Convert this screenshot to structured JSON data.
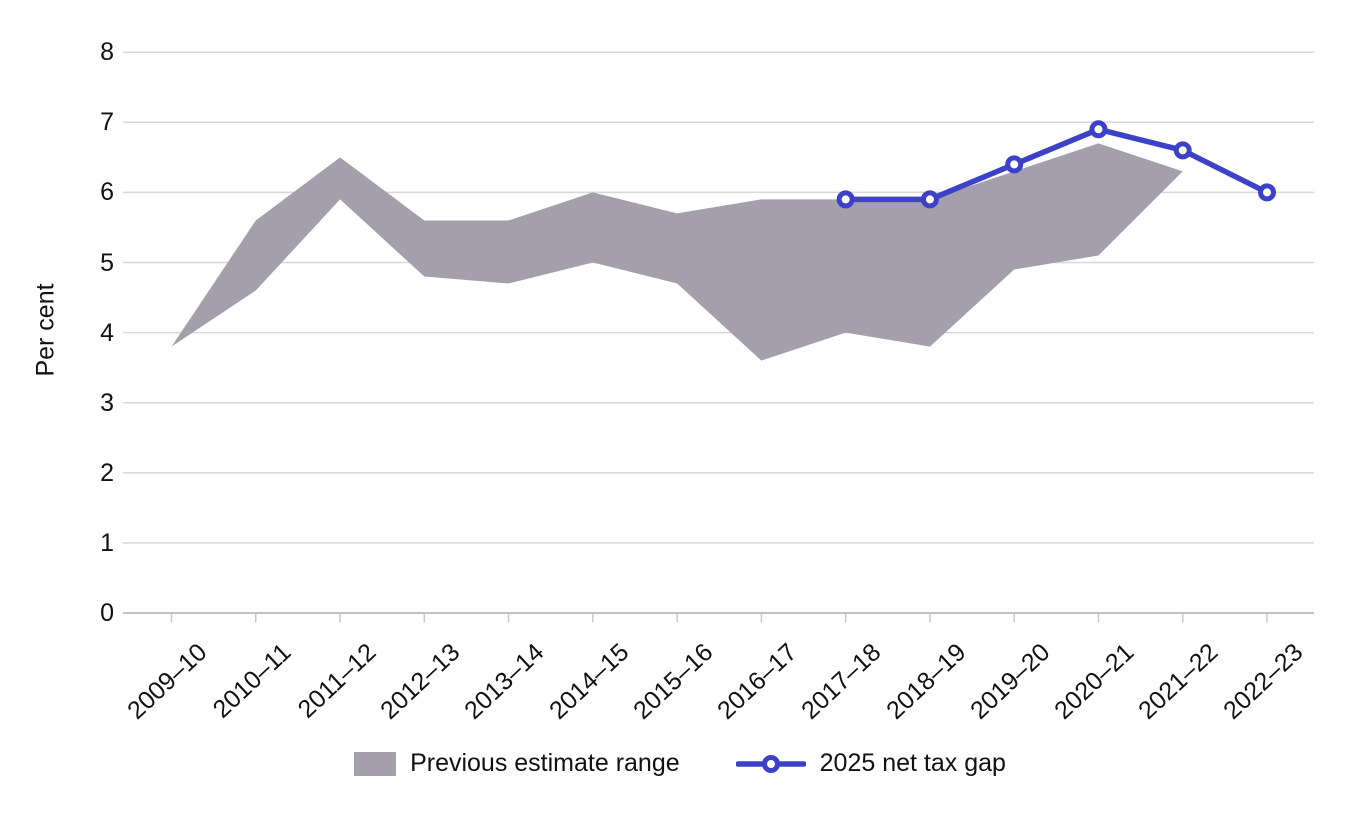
{
  "chart_data": {
    "type": "line",
    "title": "",
    "xlabel": "",
    "ylabel": "Per cent",
    "ylim": [
      0,
      8
    ],
    "yticks": [
      0,
      1,
      2,
      3,
      4,
      5,
      6,
      7,
      8
    ],
    "grid": "horizontal",
    "legend_position": "bottom center",
    "categories": [
      "2009–10",
      "2010–11",
      "2011–12",
      "2012–13",
      "2013–14",
      "2014–15",
      "2015–16",
      "2016–17",
      "2017–18",
      "2018–19",
      "2019–20",
      "2020–21",
      "2021–22",
      "2022–23"
    ],
    "series": [
      {
        "name": "Previous estimate range",
        "type": "range-band",
        "color": "#a39fab",
        "upper": [
          3.8,
          5.6,
          6.5,
          5.6,
          5.6,
          6.0,
          5.7,
          5.9,
          5.9,
          5.9,
          6.3,
          6.7,
          6.3,
          null
        ],
        "lower": [
          3.8,
          4.6,
          5.9,
          4.8,
          4.7,
          5.0,
          4.7,
          3.6,
          4.0,
          3.8,
          4.9,
          5.1,
          6.3,
          null
        ]
      },
      {
        "name": "2025 net tax gap",
        "type": "line-with-markers",
        "color": "#3c42c7",
        "values": [
          null,
          null,
          null,
          null,
          null,
          null,
          null,
          null,
          5.9,
          5.9,
          6.4,
          6.9,
          6.6,
          6.0
        ]
      }
    ]
  },
  "axis_style": {
    "gridline_color": "#d7d7d7",
    "axis_line_color": "#c2c2c4",
    "tick_color": "#c9c9c9",
    "text_color": "#111111"
  },
  "legend": {
    "items": [
      {
        "label": "Previous estimate range"
      },
      {
        "label": "2025 net tax gap"
      }
    ]
  }
}
